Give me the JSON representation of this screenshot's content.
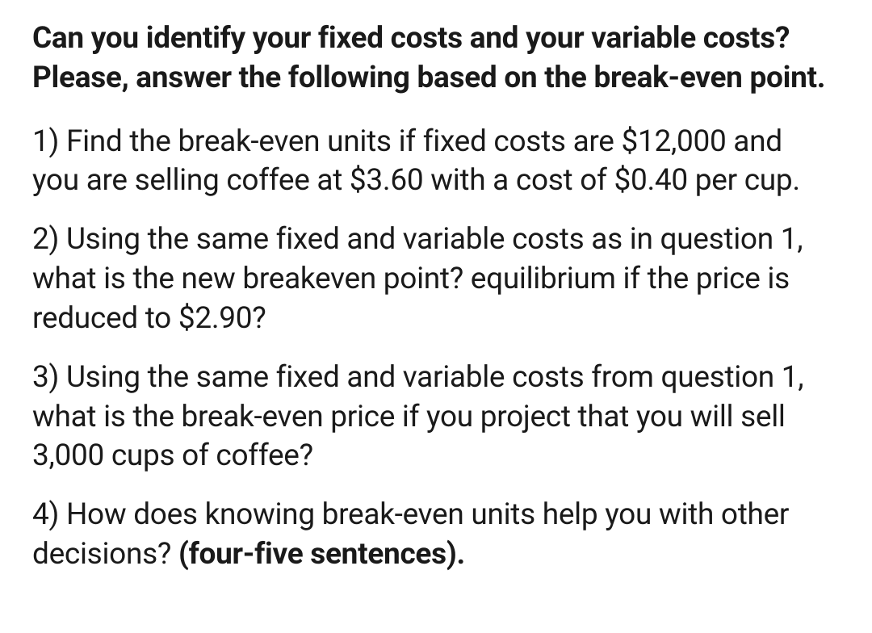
{
  "heading": "Can you identify your fixed costs and your variable costs? Please, answer the following based on the break-even point.",
  "questions": {
    "q1": "1) Find the break-even units if fixed costs are $12,000 and you are selling coffee at $3.60 with a cost of $0.40 per cup.",
    "q2": "2) Using the same fixed and variable costs as in question 1, what is the new breakeven point? equilibrium if the price is reduced to $2.90?",
    "q3": "3) Using the same fixed and variable costs from question 1, what is the break-even price if you project that you will sell 3,000 cups of coffee?",
    "q4_text": "4) How does knowing break-even units help you with other decisions? ",
    "q4_bold": "(four-five sentences)."
  },
  "styling": {
    "background_color": "#ffffff",
    "text_color": "#1a1a1a",
    "heading_fontsize": 37,
    "heading_fontweight": 700,
    "body_fontsize": 37,
    "body_fontweight": 400,
    "line_height": 1.32,
    "paragraph_spacing": 24,
    "heading_spacing": 30,
    "font_family": "sans-serif"
  }
}
